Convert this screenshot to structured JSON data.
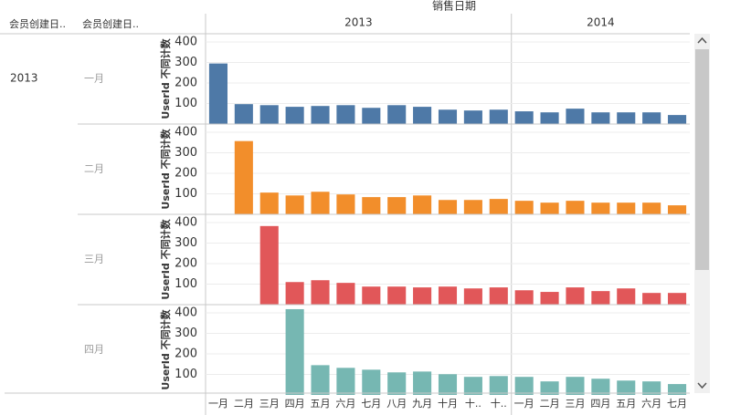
{
  "chart_data": {
    "type": "bar",
    "title": "销售日期",
    "row_headers": [
      "会员创建日..",
      "会员创建日.."
    ],
    "row_year": "2013",
    "column_headers": [
      "2013",
      "2014"
    ],
    "y_title": "UserId 不同计数",
    "categories": [
      "一月",
      "二月",
      "三月",
      "四月",
      "五月",
      "六月",
      "七月",
      "八月",
      "九月",
      "十月",
      "十..",
      "十..",
      "一月",
      "二月",
      "三月",
      "四月",
      "五月",
      "六月",
      "七月"
    ],
    "ylim": [
      0,
      440
    ],
    "yticks": [
      100,
      200,
      300,
      400
    ],
    "grid": true,
    "series": [
      {
        "name": "一月",
        "color": "#4e79a7",
        "values": [
          295,
          97,
          92,
          84,
          88,
          92,
          79,
          92,
          84,
          70,
          66,
          70,
          62,
          57,
          75,
          57,
          57,
          57,
          44
        ]
      },
      {
        "name": "二月",
        "color": "#f28e2b",
        "values": [
          null,
          357,
          106,
          92,
          110,
          97,
          84,
          84,
          92,
          70,
          70,
          75,
          66,
          57,
          66,
          57,
          57,
          57,
          44
        ]
      },
      {
        "name": "三月",
        "color": "#e15759",
        "values": [
          null,
          null,
          383,
          110,
          119,
          106,
          88,
          88,
          84,
          88,
          79,
          84,
          70,
          62,
          84,
          66,
          79,
          57,
          57
        ]
      },
      {
        "name": "四月",
        "color": "#76b7b2",
        "values": [
          null,
          null,
          null,
          418,
          145,
          132,
          123,
          110,
          114,
          101,
          88,
          92,
          88,
          66,
          88,
          79,
          70,
          66,
          53
        ]
      }
    ]
  }
}
